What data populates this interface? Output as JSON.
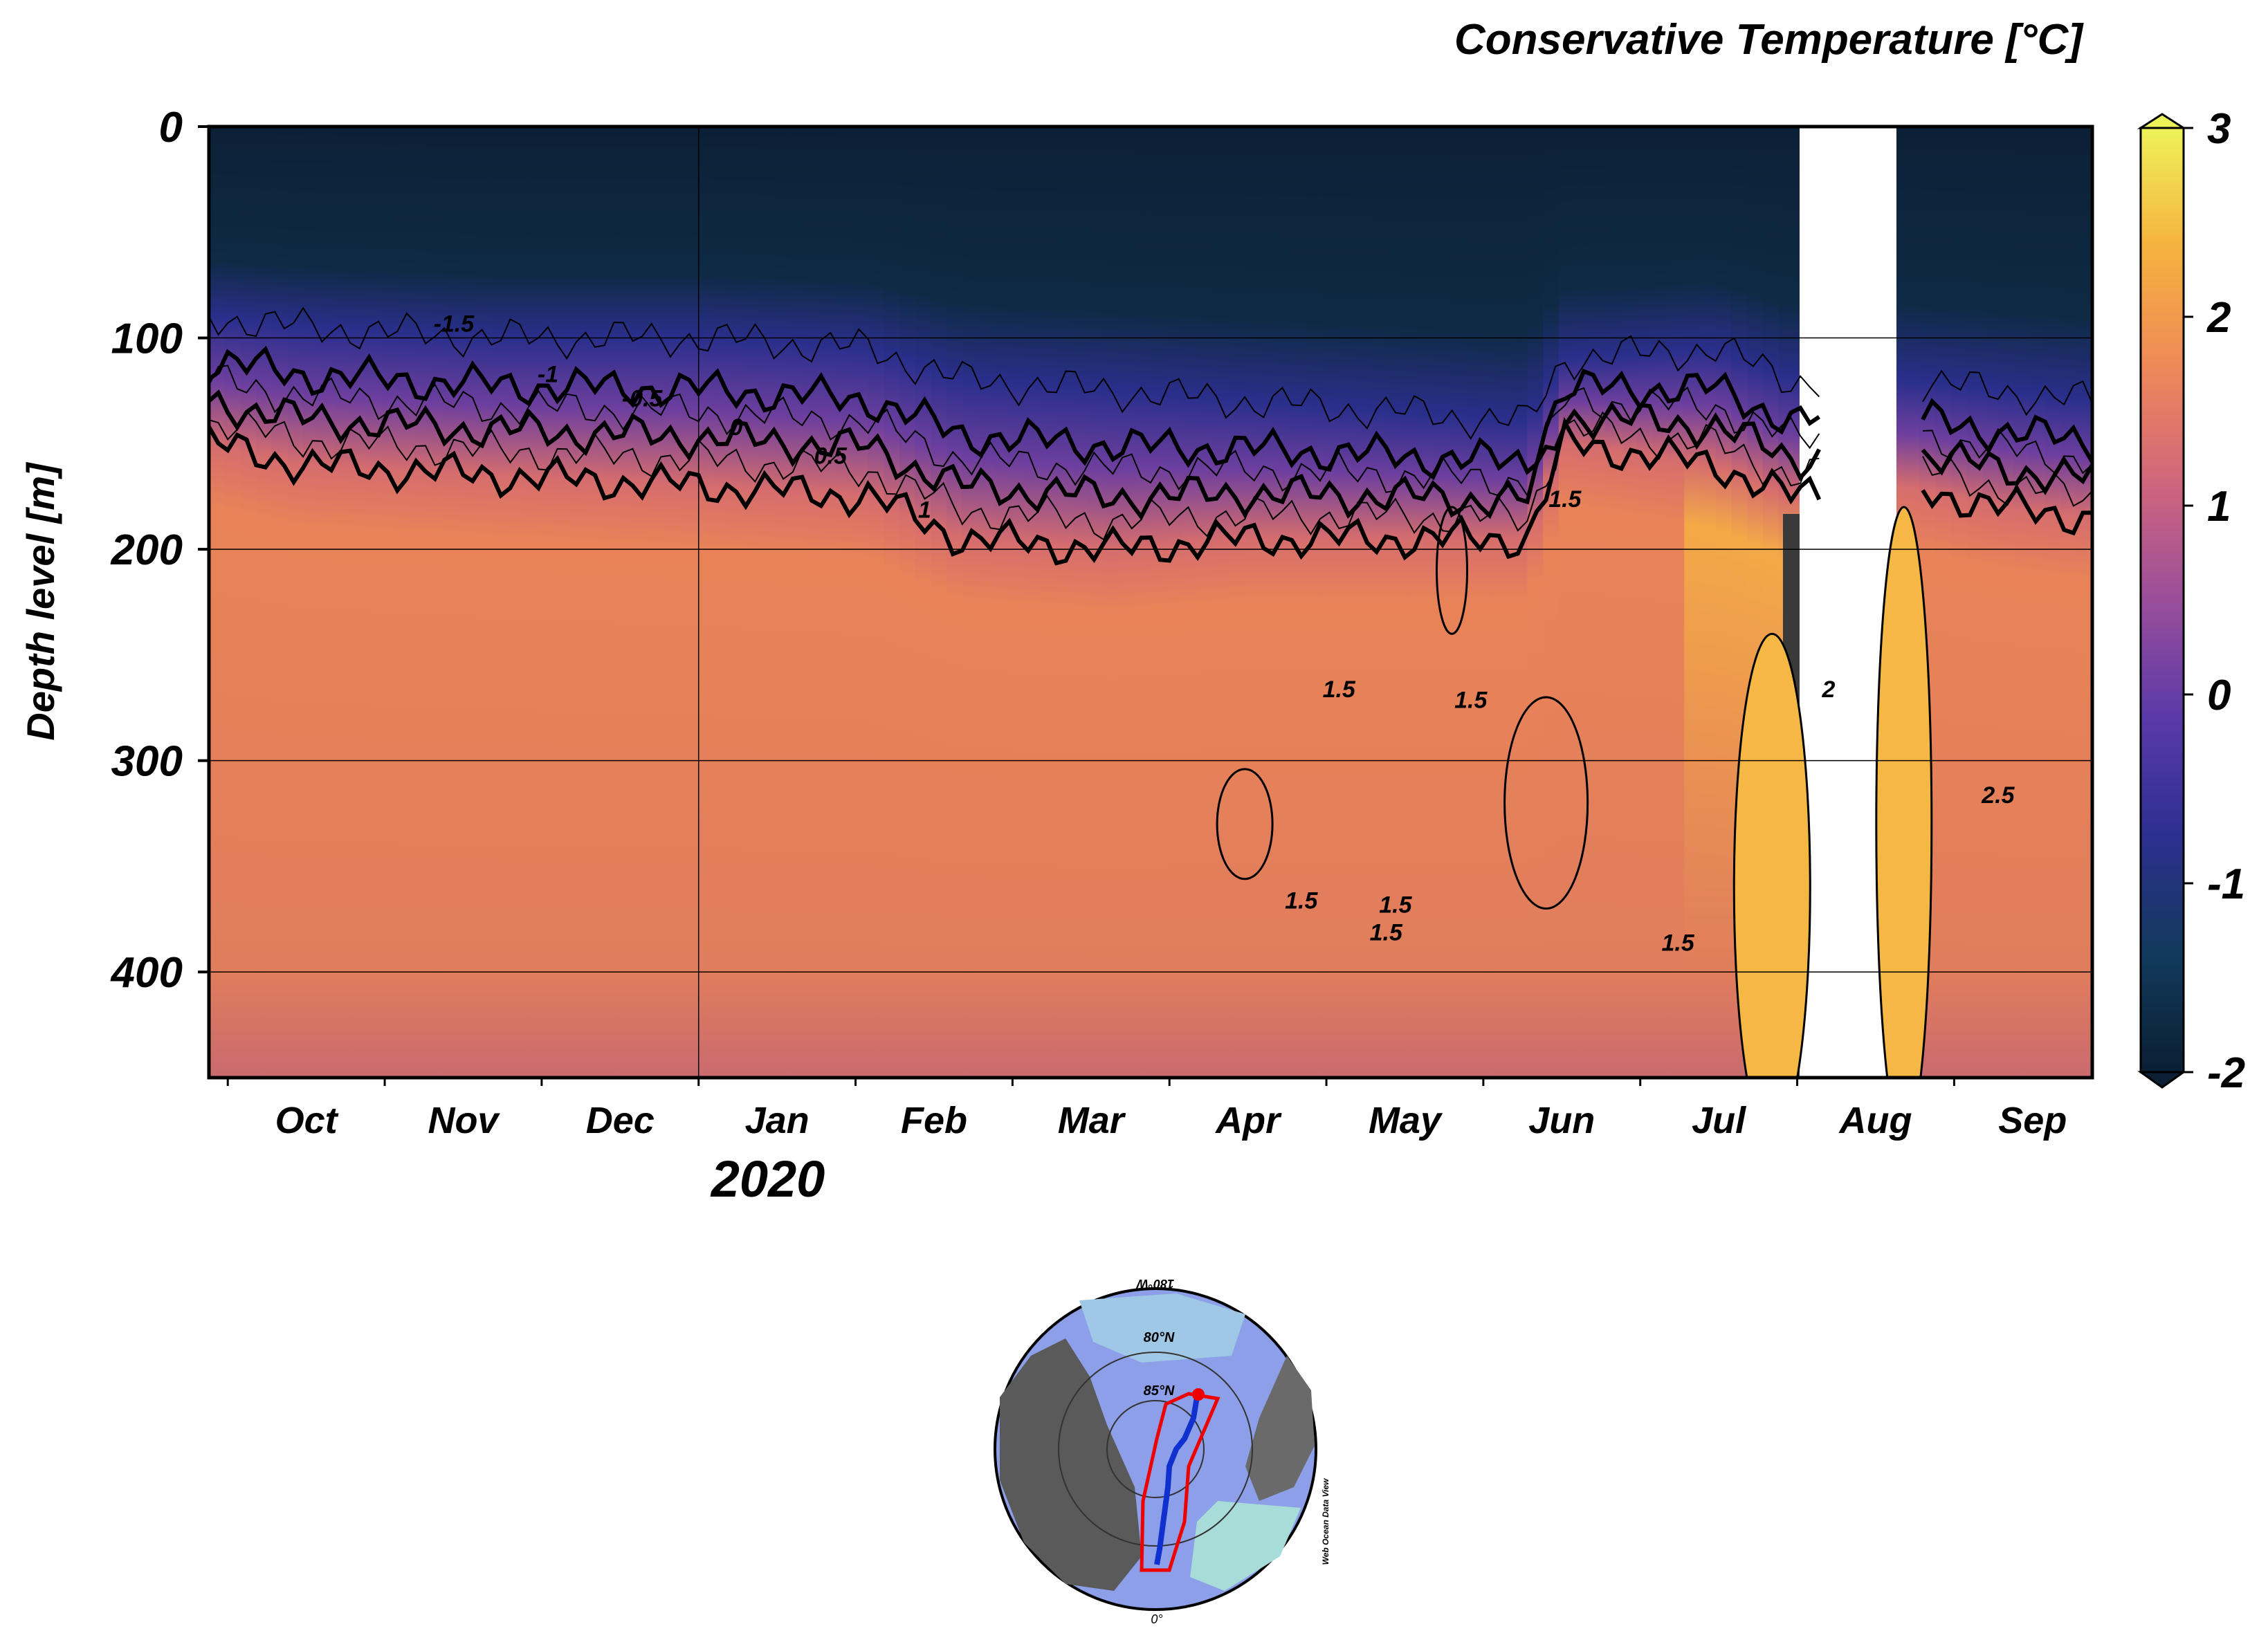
{
  "chart_data": {
    "type": "heatmap",
    "title": "Conservative Temperature [°C]",
    "ylabel": "Depth level [m]",
    "xlabel": "",
    "year_label": "2020",
    "ylim": [
      0,
      450
    ],
    "y_inverted": true,
    "y_ticks": [
      "0",
      "100",
      "200",
      "300",
      "400"
    ],
    "x_ticks": [
      "Oct",
      "Nov",
      "Dec",
      "Jan",
      "Feb",
      "Mar",
      "Apr",
      "May",
      "Jun",
      "Jul",
      "Aug",
      "Sep"
    ],
    "colorbar": {
      "min": -2,
      "max": 3,
      "ticks": [
        "3",
        "2",
        "1",
        "0",
        "-1",
        "-2"
      ],
      "colors": [
        "#0a1f33",
        "#123a5c",
        "#2c2f8f",
        "#5a3aa8",
        "#9a4e9a",
        "#d0667c",
        "#ee8a57",
        "#f6b23f",
        "#eef25a"
      ]
    },
    "profile_columns": [
      {
        "t": 0.0,
        "warm_top": 150,
        "cold_base": 90
      },
      {
        "t": 0.05,
        "warm_top": 160,
        "cold_base": 95
      },
      {
        "t": 0.15,
        "warm_top": 165,
        "cold_base": 100
      },
      {
        "t": 0.26,
        "warm_top": 170,
        "cold_base": 100
      },
      {
        "t": 0.35,
        "warm_top": 175,
        "cold_base": 105
      },
      {
        "t": 0.4,
        "warm_top": 195,
        "cold_base": 120
      },
      {
        "t": 0.48,
        "warm_top": 200,
        "cold_base": 125
      },
      {
        "t": 0.55,
        "warm_top": 195,
        "cold_base": 130
      },
      {
        "t": 0.63,
        "warm_top": 195,
        "cold_base": 135
      },
      {
        "t": 0.7,
        "warm_top": 195,
        "cold_base": 140
      },
      {
        "t": 0.72,
        "warm_top": 150,
        "cold_base": 110
      },
      {
        "t": 0.8,
        "warm_top": 160,
        "cold_base": 105
      },
      {
        "t": 0.84,
        "warm_top": 175,
        "cold_base": 120
      },
      {
        "t": 0.9,
        "warm_top": 170,
        "cold_base": 120
      },
      {
        "t": 0.95,
        "warm_top": 180,
        "cold_base": 125
      },
      {
        "t": 1.0,
        "warm_top": 185,
        "cold_base": 130
      }
    ],
    "contour_labels": [
      "-1.5",
      "-1",
      "-0.5",
      "0",
      "0.5",
      "1",
      "1.5",
      "2",
      "2.5"
    ],
    "data_gap": {
      "start_month": "Aug",
      "end_month": "Aug"
    }
  },
  "inset_map": {
    "labels": [
      "180°W",
      "80°N",
      "85°N",
      "0°"
    ],
    "credit": "Web Ocean Data View"
  }
}
